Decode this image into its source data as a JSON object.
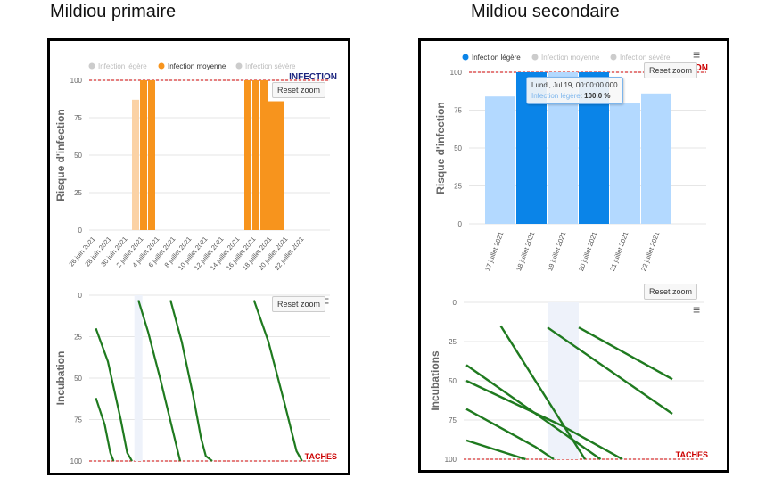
{
  "titles": {
    "left": "Mildiou primaire",
    "right": "Mildiou secondaire"
  },
  "common": {
    "reset_zoom": "Reset zoom",
    "menu_icon": "hamburger-menu-icon"
  },
  "colors": {
    "legere": "#7cb5ec",
    "legere_selected": "#0a84e8",
    "moyenne": "#f7941d",
    "moyenne_faded": "#fbd2a5",
    "incubation_line": "#1f7a1f",
    "threshold": "#cc0000",
    "brand_navy": "#1a237e",
    "legend_inactive": "#cccccc"
  },
  "tooltip": {
    "date": "Lundi, Jul 19, 00:00:00.000",
    "series": "Infection légère",
    "value": "100.0 %"
  },
  "chart_data": [
    {
      "id": "primaire-infection",
      "type": "bar",
      "ylabel": "Risque d'infection",
      "brand_label": "INFECTION",
      "ylim": [
        0,
        100
      ],
      "yticks": [
        0,
        25,
        50,
        75,
        100
      ],
      "threshold": 100,
      "legend": [
        {
          "name": "Infection légère",
          "active": false
        },
        {
          "name": "Infection moyenne",
          "active": true
        },
        {
          "name": "Infection sévère",
          "active": false
        }
      ],
      "tick_labels": [
        "26 juin 2021",
        "28 juin 2021",
        "30 juin 2021",
        "2 juillet 2021",
        "4 juillet 2021",
        "6 juillet 2021",
        "8 juillet 2021",
        "10 juillet 2021",
        "12 juillet 2021",
        "14 juillet 2021",
        "16 juillet 2021",
        "18 juillet 2021",
        "20 juillet 2021",
        "22 juillet 2021"
      ],
      "bars": [
        {
          "day": 5,
          "value": 87,
          "faded": true
        },
        {
          "day": 6,
          "value": 100
        },
        {
          "day": 7,
          "value": 100
        },
        {
          "day": 19,
          "value": 100
        },
        {
          "day": 20,
          "value": 100
        },
        {
          "day": 21,
          "value": 100
        },
        {
          "day": 22,
          "value": 86
        },
        {
          "day": 23,
          "value": 86
        }
      ]
    },
    {
      "id": "primaire-incubation",
      "type": "line",
      "ylabel": "Incubation",
      "brand_label": "TACHES",
      "ylim": [
        0,
        100
      ],
      "y_reversed": true,
      "yticks": [
        0,
        25,
        50,
        75,
        100
      ],
      "threshold": 100,
      "plotband_days": [
        5.3,
        6.3
      ],
      "series": [
        {
          "points": [
            [
              0.5,
              20
            ],
            [
              2.0,
              40
            ],
            [
              3.6,
              75
            ],
            [
              4.4,
              95
            ],
            [
              5.0,
              100
            ]
          ]
        },
        {
          "points": [
            [
              0.5,
              62
            ],
            [
              1.6,
              78
            ],
            [
              2.3,
              95
            ],
            [
              2.7,
              100
            ]
          ]
        },
        {
          "points": [
            [
              5.8,
              3
            ],
            [
              7.0,
              22
            ],
            [
              8.5,
              50
            ],
            [
              10.0,
              80
            ],
            [
              11.0,
              100
            ]
          ]
        },
        {
          "points": [
            [
              9.8,
              3
            ],
            [
              11.2,
              28
            ],
            [
              12.6,
              60
            ],
            [
              13.6,
              86
            ],
            [
              14.2,
              97
            ],
            [
              15.0,
              100
            ]
          ]
        },
        {
          "points": [
            [
              20.2,
              3
            ],
            [
              22.0,
              28
            ],
            [
              24.0,
              65
            ],
            [
              25.5,
              94
            ],
            [
              26.2,
              100
            ]
          ]
        }
      ]
    },
    {
      "id": "secondaire-infection",
      "type": "bar",
      "ylabel": "Risque d'infection",
      "brand_label": "INFECTION",
      "ylim": [
        0,
        100
      ],
      "yticks": [
        0,
        25,
        50,
        75,
        100
      ],
      "threshold": 100,
      "legend": [
        {
          "name": "Infection légère",
          "active": true
        },
        {
          "name": "Infection moyenne",
          "active": false
        },
        {
          "name": "Infection sévère",
          "active": false
        }
      ],
      "categories": [
        "17 juillet 2021",
        "18 juillet 2021",
        "19 juillet 2021",
        "20 juillet 2021",
        "21 juillet 2021",
        "22 juillet 2021"
      ],
      "bars": [
        {
          "value": 84,
          "selected": false
        },
        {
          "value": 100,
          "selected": true
        },
        {
          "value": 100,
          "selected": false
        },
        {
          "value": 100,
          "selected": true
        },
        {
          "value": 80,
          "selected": false
        },
        {
          "value": 86,
          "selected": false
        }
      ]
    },
    {
      "id": "secondaire-incubation",
      "type": "line",
      "ylabel": "Incubations",
      "brand_label": "TACHES",
      "ylim": [
        0,
        100
      ],
      "y_reversed": true,
      "yticks": [
        0,
        25,
        50,
        75,
        100
      ],
      "threshold": 100,
      "plotband_days": [
        2.0,
        3.0
      ],
      "series": [
        {
          "points": [
            [
              -0.6,
              40
            ],
            [
              3.7,
              100
            ]
          ]
        },
        {
          "points": [
            [
              -0.6,
              50
            ],
            [
              2.5,
              79
            ],
            [
              4.4,
              100
            ]
          ]
        },
        {
          "points": [
            [
              -0.6,
              68
            ],
            [
              1.6,
              92
            ],
            [
              2.2,
              100
            ]
          ]
        },
        {
          "points": [
            [
              -0.6,
              88
            ],
            [
              1.3,
              100
            ]
          ]
        },
        {
          "points": [
            [
              0.5,
              15
            ],
            [
              3.2,
              100
            ]
          ]
        },
        {
          "points": [
            [
              2.0,
              16
            ],
            [
              6.0,
              71
            ]
          ]
        },
        {
          "points": [
            [
              3.0,
              16
            ],
            [
              6.0,
              49
            ]
          ]
        }
      ]
    }
  ]
}
